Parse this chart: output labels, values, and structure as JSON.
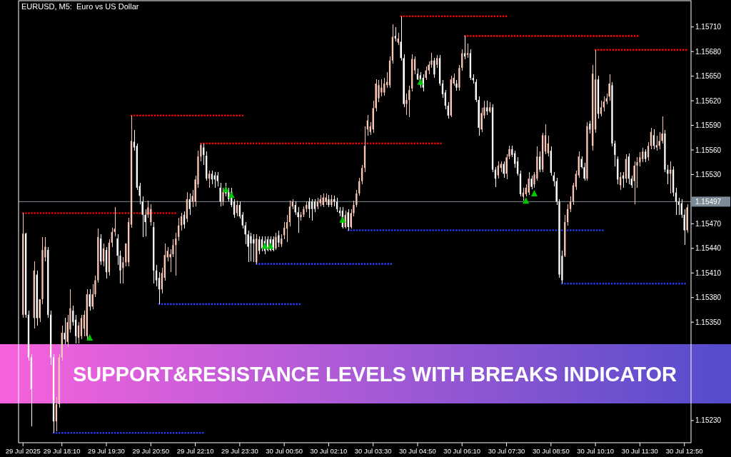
{
  "chart_data": {
    "type": "candlestick",
    "title": "EURUSD, M5:  Euro vs US Dollar",
    "annotations": [
      "SUPPORT&RESISTANCE LEVELS WITH BREAKS INDICATOR"
    ],
    "xlim": [
      "2025-07-29T16:52",
      "2025-07-30T13:02"
    ],
    "xticks": [
      {
        "value": "2025-07-29T17:00",
        "label": "29 Jul 2025"
      },
      {
        "value": "2025-07-29T18:10",
        "label": "29 Jul 18:10"
      },
      {
        "value": "2025-07-29T19:30",
        "label": "29 Jul 19:30"
      },
      {
        "value": "2025-07-29T20:50",
        "label": "29 Jul 20:50"
      },
      {
        "value": "2025-07-29T22:10",
        "label": "29 Jul 22:10"
      },
      {
        "value": "2025-07-29T23:30",
        "label": "29 Jul 23:30"
      },
      {
        "value": "2025-07-30T00:50",
        "label": "30 Jul 00:50"
      },
      {
        "value": "2025-07-30T02:10",
        "label": "30 Jul 02:10"
      },
      {
        "value": "2025-07-30T03:30",
        "label": "30 Jul 03:30"
      },
      {
        "value": "2025-07-30T04:50",
        "label": "30 Jul 04:50"
      },
      {
        "value": "2025-07-30T06:10",
        "label": "30 Jul 06:10"
      },
      {
        "value": "2025-07-30T07:30",
        "label": "30 Jul 07:30"
      },
      {
        "value": "2025-07-30T08:50",
        "label": "30 Jul 08:50"
      },
      {
        "value": "2025-07-30T10:10",
        "label": "30 Jul 10:10"
      },
      {
        "value": "2025-07-30T11:30",
        "label": "30 Jul 11:30"
      },
      {
        "value": "2025-07-30T12:50",
        "label": "30 Jul 12:50"
      }
    ],
    "ylim": [
      1.15203,
      1.15742
    ],
    "yticks": [
      {
        "value": 1.1523,
        "label": "1.15230"
      },
      {
        "value": 1.1535,
        "label": "1.15350"
      },
      {
        "value": 1.1538,
        "label": "1.15380"
      },
      {
        "value": 1.1541,
        "label": "1.15410"
      },
      {
        "value": 1.1544,
        "label": "1.15440"
      },
      {
        "value": 1.1547,
        "label": "1.15470"
      },
      {
        "value": 1.1553,
        "label": "1.15530"
      },
      {
        "value": 1.1556,
        "label": "1.15560"
      },
      {
        "value": 1.1559,
        "label": "1.15590"
      },
      {
        "value": 1.1562,
        "label": "1.15620"
      },
      {
        "value": 1.1565,
        "label": "1.15650"
      },
      {
        "value": 1.1568,
        "label": "1.15680"
      },
      {
        "value": 1.1571,
        "label": "1.15710"
      }
    ],
    "colors": [
      "#f9c6b3",
      "#ffffff",
      "#ffffff",
      "#ffffff",
      "#f9c6b3",
      "#ffffff",
      "#f9c6b3",
      "#f9c6b3",
      "#f9c6b3",
      "#ffffff",
      "#ffffff",
      "#ffffff",
      "#f9c6b3",
      "#f9c6b3",
      "#f9c6b3",
      "#ffffff",
      "#f9c6b3",
      "#f9c6b3",
      "#ffffff",
      "#ffffff",
      "#f9c6b3",
      "#f9c6b3",
      "#f9c6b3",
      "#f9c6b3",
      "#ffffff",
      "#f9c6b3",
      "#f9c6b3",
      "#f9c6b3",
      "#ffffff",
      "#f9c6b3",
      "#ffffff",
      "#f9c6b3",
      "#f9c6b3",
      "#f9c6b3",
      "#ffffff",
      "#ffffff",
      "#f9c6b3",
      "#f9c6b3",
      "#f9c6b3",
      "#f9c6b3",
      "#ffffff",
      "#ffffff",
      "#ffffff",
      "#ffffff",
      "#ffffff",
      "#f9c6b3",
      "#f9c6b3",
      "#ffffff",
      "#ffffff",
      "#ffffff",
      "#f9c6b3",
      "#f9c6b3",
      "#f9c6b3",
      "#f9c6b3",
      "#f9c6b3",
      "#f9c6b3",
      "#f9c6b3",
      "#f9c6b3",
      "#ffffff",
      "#f9c6b3",
      "#ffffff",
      "#f9c6b3",
      "#f9c6b3",
      "#f9c6b3",
      "#f9c6b3",
      "#ffffff",
      "#ffffff",
      "#f9c6b3",
      "#ffffff",
      "#ffffff",
      "#ffffff",
      "#ffffff",
      "#f9c6b3",
      "#ffffff",
      "#ffffff",
      "#ffffff",
      "#ffffff",
      "#f9c6b3",
      "#ffffff",
      "#ffffff",
      "#ffffff",
      "#ffffff",
      "#ffffff",
      "#ffffff",
      "#f9c6b3",
      "#ffffff",
      "#ffffff",
      "#ffffff",
      "#ffffff",
      "#ffffff",
      "#ffffff",
      "#f9c6b3",
      "#ffffff",
      "#f9c6b3",
      "#f9c6b3",
      "#f9c6b3",
      "#f9c6b3",
      "#f9c6b3",
      "#ffffff",
      "#ffffff",
      "#f9c6b3",
      "#f9c6b3",
      "#f9c6b3",
      "#ffffff",
      "#ffffff",
      "#ffffff",
      "#f9c6b3",
      "#f9c6b3",
      "#f9c6b3",
      "#f9c6b3",
      "#ffffff",
      "#f9c6b3",
      "#ffffff",
      "#ffffff",
      "#ffffff",
      "#ffffff",
      "#f9c6b3",
      "#ffffff",
      "#f9c6b3",
      "#f9c6b3",
      "#f9c6b3",
      "#f9c6b3",
      "#f9c6b3",
      "#f9c6b3",
      "#f9c6b3",
      "#f9c6b3",
      "#f9c6b3",
      "#f9c6b3",
      "#f9c6b3",
      "#f9c6b3",
      "#f9c6b3",
      "#f9c6b3",
      "#f9c6b3",
      "#f9c6b3",
      "#ffffff",
      "#f9c6b3",
      "#ffffff",
      "#ffffff",
      "#f9c6b3",
      "#f9c6b3",
      "#f9c6b3",
      "#f9c6b3",
      "#ffffff",
      "#ffffff",
      "#ffffff",
      "#f9c6b3",
      "#f9c6b3",
      "#f9c6b3",
      "#ffffff",
      "#f9c6b3",
      "#ffffff",
      "#ffffff",
      "#ffffff",
      "#ffffff",
      "#f9c6b3",
      "#f9c6b3",
      "#ffffff",
      "#f9c6b3",
      "#f9c6b3",
      "#ffffff",
      "#f9c6b3",
      "#ffffff",
      "#ffffff",
      "#ffffff",
      "#ffffff",
      "#f9c6b3",
      "#f9c6b3",
      "#ffffff",
      "#f9c6b3",
      "#ffffff",
      "#ffffff",
      "#f9c6b3",
      "#f9c6b3",
      "#ffffff",
      "#f9c6b3",
      "#f9c6b3",
      "#ffffff",
      "#ffffff",
      "#ffffff",
      "#ffffff",
      "#f9c6b3",
      "#f9c6b3",
      "#f9c6b3",
      "#ffffff",
      "#f9c6b3",
      "#f9c6b3",
      "#ffffff",
      "#f9c6b3",
      "#f9c6b3",
      "#f9c6b3",
      "#ffffff",
      "#ffffff",
      "#ffffff",
      "#ffffff",
      "#ffffff",
      "#f9c6b3",
      "#f9c6b3",
      "#f9c6b3",
      "#f9c6b3",
      "#f9c6b3",
      "#f9c6b3",
      "#ffffff",
      "#ffffff",
      "#f9c6b3",
      "#ffffff",
      "#f9c6b3",
      "#f9c6b3",
      "#ffffff",
      "#f9c6b3",
      "#f9c6b3",
      "#f9c6b3",
      "#f9c6b3",
      "#ffffff",
      "#ffffff",
      "#ffffff",
      "#f9c6b3",
      "#ffffff",
      "#f9c6b3",
      "#ffffff",
      "#ffffff",
      "#f9c6b3",
      "#f9c6b3",
      "#f9c6b3",
      "#f9c6b3",
      "#ffffff",
      "#f9c6b3",
      "#f9c6b3",
      "#ffffff",
      "#f9c6b3",
      "#f9c6b3",
      "#f9c6b3",
      "#ffffff",
      "#ffffff",
      "#f9c6b3",
      "#ffffff",
      "#ffffff",
      "#ffffff",
      "#ffffff",
      "#ffffff",
      "#f9c6b3"
    ],
    "ref_lines": [
      {
        "axis": "y",
        "value": 1.15497,
        "label": "1.15497",
        "color": "#7d8b98"
      }
    ],
    "x": [
      "2025-07-29T17:00",
      "2025-07-29T17:05",
      "2025-07-29T17:10",
      "2025-07-29T17:15",
      "2025-07-29T17:20",
      "2025-07-29T17:25",
      "2025-07-29T17:30",
      "2025-07-29T17:35",
      "2025-07-29T17:40",
      "2025-07-29T17:45",
      "2025-07-29T17:50",
      "2025-07-29T17:55",
      "2025-07-29T18:00",
      "2025-07-29T18:05",
      "2025-07-29T18:10",
      "2025-07-29T18:15",
      "2025-07-29T18:20",
      "2025-07-29T18:25",
      "2025-07-29T18:30",
      "2025-07-29T18:35",
      "2025-07-29T18:40",
      "2025-07-29T18:45",
      "2025-07-29T18:50",
      "2025-07-29T18:55",
      "2025-07-29T19:00",
      "2025-07-29T19:05",
      "2025-07-29T19:10",
      "2025-07-29T19:15",
      "2025-07-29T19:20",
      "2025-07-29T19:25",
      "2025-07-29T19:30",
      "2025-07-29T19:35",
      "2025-07-29T19:40",
      "2025-07-29T19:45",
      "2025-07-29T19:50",
      "2025-07-29T19:55",
      "2025-07-29T20:00",
      "2025-07-29T20:05",
      "2025-07-29T20:10",
      "2025-07-29T20:15",
      "2025-07-29T20:20",
      "2025-07-29T20:25",
      "2025-07-29T20:30",
      "2025-07-29T20:35",
      "2025-07-29T20:40",
      "2025-07-29T20:45",
      "2025-07-29T20:50",
      "2025-07-29T20:55",
      "2025-07-29T21:00",
      "2025-07-29T21:05",
      "2025-07-29T21:10",
      "2025-07-29T21:15",
      "2025-07-29T21:20",
      "2025-07-29T21:25",
      "2025-07-29T21:30",
      "2025-07-29T21:35",
      "2025-07-29T21:40",
      "2025-07-29T21:45",
      "2025-07-29T21:50",
      "2025-07-29T21:55",
      "2025-07-29T22:00",
      "2025-07-29T22:05",
      "2025-07-29T22:10",
      "2025-07-29T22:15",
      "2025-07-29T22:20",
      "2025-07-29T22:25",
      "2025-07-29T22:30",
      "2025-07-29T22:35",
      "2025-07-29T22:40",
      "2025-07-29T22:45",
      "2025-07-29T22:50",
      "2025-07-29T22:55",
      "2025-07-29T23:00",
      "2025-07-29T23:05",
      "2025-07-29T23:10",
      "2025-07-29T23:15",
      "2025-07-29T23:20",
      "2025-07-29T23:25",
      "2025-07-29T23:30",
      "2025-07-29T23:35",
      "2025-07-29T23:40",
      "2025-07-29T23:45",
      "2025-07-29T23:50",
      "2025-07-29T23:55",
      "2025-07-30T00:00",
      "2025-07-30T00:05",
      "2025-07-30T00:10",
      "2025-07-30T00:15",
      "2025-07-30T00:20",
      "2025-07-30T00:25",
      "2025-07-30T00:30",
      "2025-07-30T00:35",
      "2025-07-30T00:40",
      "2025-07-30T00:45",
      "2025-07-30T00:50",
      "2025-07-30T00:55",
      "2025-07-30T01:00",
      "2025-07-30T01:05",
      "2025-07-30T01:10",
      "2025-07-30T01:15",
      "2025-07-30T01:20",
      "2025-07-30T01:25",
      "2025-07-30T01:30",
      "2025-07-30T01:35",
      "2025-07-30T01:40",
      "2025-07-30T01:45",
      "2025-07-30T01:50",
      "2025-07-30T01:55",
      "2025-07-30T02:00",
      "2025-07-30T02:05",
      "2025-07-30T02:10",
      "2025-07-30T02:15",
      "2025-07-30T02:20",
      "2025-07-30T02:25",
      "2025-07-30T02:30",
      "2025-07-30T02:35",
      "2025-07-30T02:40",
      "2025-07-30T02:45",
      "2025-07-30T02:50",
      "2025-07-30T02:55",
      "2025-07-30T03:00",
      "2025-07-30T03:05",
      "2025-07-30T03:10",
      "2025-07-30T03:15",
      "2025-07-30T03:20",
      "2025-07-30T03:25",
      "2025-07-30T03:30",
      "2025-07-30T03:35",
      "2025-07-30T03:40",
      "2025-07-30T03:45",
      "2025-07-30T03:50",
      "2025-07-30T03:55",
      "2025-07-30T04:00",
      "2025-07-30T04:05",
      "2025-07-30T04:10",
      "2025-07-30T04:15",
      "2025-07-30T04:20",
      "2025-07-30T04:25",
      "2025-07-30T04:30",
      "2025-07-30T04:35",
      "2025-07-30T04:40",
      "2025-07-30T04:45",
      "2025-07-30T04:50",
      "2025-07-30T04:55",
      "2025-07-30T05:00",
      "2025-07-30T05:05",
      "2025-07-30T05:10",
      "2025-07-30T05:15",
      "2025-07-30T05:20",
      "2025-07-30T05:25",
      "2025-07-30T05:30",
      "2025-07-30T05:35",
      "2025-07-30T05:40",
      "2025-07-30T05:45",
      "2025-07-30T05:50",
      "2025-07-30T05:55",
      "2025-07-30T06:00",
      "2025-07-30T06:05",
      "2025-07-30T06:10",
      "2025-07-30T06:15",
      "2025-07-30T06:20",
      "2025-07-30T06:25",
      "2025-07-30T06:30",
      "2025-07-30T06:35",
      "2025-07-30T06:40",
      "2025-07-30T06:45",
      "2025-07-30T06:50",
      "2025-07-30T06:55",
      "2025-07-30T07:00",
      "2025-07-30T07:05",
      "2025-07-30T07:10",
      "2025-07-30T07:15",
      "2025-07-30T07:20",
      "2025-07-30T07:25",
      "2025-07-30T07:30",
      "2025-07-30T07:35",
      "2025-07-30T07:40",
      "2025-07-30T07:45",
      "2025-07-30T07:50",
      "2025-07-30T07:55",
      "2025-07-30T08:00",
      "2025-07-30T08:05",
      "2025-07-30T08:10",
      "2025-07-30T08:15",
      "2025-07-30T08:20",
      "2025-07-30T08:25",
      "2025-07-30T08:30",
      "2025-07-30T08:35",
      "2025-07-30T08:40",
      "2025-07-30T08:45",
      "2025-07-30T08:50",
      "2025-07-30T08:55",
      "2025-07-30T09:00",
      "2025-07-30T09:05",
      "2025-07-30T09:10",
      "2025-07-30T09:15",
      "2025-07-30T09:20",
      "2025-07-30T09:25",
      "2025-07-30T09:30",
      "2025-07-30T09:35",
      "2025-07-30T09:40",
      "2025-07-30T09:45",
      "2025-07-30T09:50",
      "2025-07-30T09:55",
      "2025-07-30T10:00",
      "2025-07-30T10:05",
      "2025-07-30T10:10",
      "2025-07-30T10:15",
      "2025-07-30T10:20",
      "2025-07-30T10:25",
      "2025-07-30T10:30",
      "2025-07-30T10:35",
      "2025-07-30T10:40",
      "2025-07-30T10:45",
      "2025-07-30T10:50",
      "2025-07-30T10:55",
      "2025-07-30T11:00",
      "2025-07-30T11:05",
      "2025-07-30T11:10",
      "2025-07-30T11:15",
      "2025-07-30T11:20",
      "2025-07-30T11:25",
      "2025-07-30T11:30",
      "2025-07-30T11:35",
      "2025-07-30T11:40",
      "2025-07-30T11:45",
      "2025-07-30T11:50",
      "2025-07-30T11:55",
      "2025-07-30T12:00",
      "2025-07-30T12:05",
      "2025-07-30T12:10",
      "2025-07-30T12:15",
      "2025-07-30T12:20",
      "2025-07-30T12:25",
      "2025-07-30T12:30",
      "2025-07-30T12:35",
      "2025-07-30T12:40",
      "2025-07-30T12:45",
      "2025-07-30T12:50",
      "2025-07-30T12:55"
    ],
    "ohlc": [
      [
        1.15359,
        1.15483,
        1.15355,
        1.15458
      ],
      [
        1.15458,
        1.15459,
        1.15355,
        1.15359
      ],
      [
        1.15359,
        1.15364,
        1.15303,
        1.15307
      ],
      [
        1.15307,
        1.15311,
        1.15223,
        1.15268
      ],
      [
        1.15355,
        1.15424,
        1.15342,
        1.15413
      ],
      [
        1.15408,
        1.15413,
        1.15346,
        1.15355
      ],
      [
        1.15355,
        1.15378,
        1.1535,
        1.15378
      ],
      [
        1.15378,
        1.15454,
        1.15372,
        1.15438
      ],
      [
        1.15429,
        1.15454,
        1.15424,
        1.15442
      ],
      [
        1.15438,
        1.15442,
        1.15355,
        1.15359
      ],
      [
        1.15359,
        1.15364,
        1.15298,
        1.15307
      ],
      [
        1.15307,
        1.15311,
        1.15215,
        1.15229
      ],
      [
        1.15229,
        1.15259,
        1.15217,
        1.1525
      ],
      [
        1.1525,
        1.15311,
        1.15246,
        1.15307
      ],
      [
        1.15307,
        1.15346,
        1.15303,
        1.15337
      ],
      [
        1.15337,
        1.15355,
        1.15323,
        1.15329
      ],
      [
        1.15326,
        1.15359,
        1.1532,
        1.1535
      ],
      [
        1.15341,
        1.1539,
        1.15337,
        1.15367
      ],
      [
        1.15364,
        1.1537,
        1.15346,
        1.1535
      ],
      [
        1.15353,
        1.15359,
        1.15324,
        1.15333
      ],
      [
        1.15331,
        1.1535,
        1.15324,
        1.15346
      ],
      [
        1.15333,
        1.15359,
        1.15329,
        1.15355
      ],
      [
        1.15342,
        1.15364,
        1.15333,
        1.15359
      ],
      [
        1.15333,
        1.1539,
        1.15329,
        1.15384
      ],
      [
        1.15384,
        1.1539,
        1.15364,
        1.15369
      ],
      [
        1.15369,
        1.15396,
        1.15366,
        1.15384
      ],
      [
        1.15384,
        1.15407,
        1.15381,
        1.15401
      ],
      [
        1.15401,
        1.15464,
        1.15398,
        1.15454
      ],
      [
        1.15452,
        1.15457,
        1.1542,
        1.15424
      ],
      [
        1.15424,
        1.15446,
        1.15418,
        1.1544
      ],
      [
        1.15438,
        1.15442,
        1.15403,
        1.15411
      ],
      [
        1.15411,
        1.15451,
        1.15407,
        1.15447
      ],
      [
        1.15447,
        1.15465,
        1.15442,
        1.1546
      ],
      [
        1.1546,
        1.1549,
        1.15455,
        1.15464
      ],
      [
        1.15452,
        1.15457,
        1.1542,
        1.15431
      ],
      [
        1.15431,
        1.15437,
        1.15397,
        1.15413
      ],
      [
        1.15416,
        1.15429,
        1.15397,
        1.15423
      ],
      [
        1.15423,
        1.15446,
        1.15418,
        1.15446
      ],
      [
        1.15423,
        1.15477,
        1.15418,
        1.15472
      ],
      [
        1.15469,
        1.15602,
        1.15465,
        1.15571
      ],
      [
        1.1557,
        1.15584,
        1.15559,
        1.15563
      ],
      [
        1.15565,
        1.15568,
        1.15511,
        1.15514
      ],
      [
        1.15516,
        1.1552,
        1.15494,
        1.15504
      ],
      [
        1.15497,
        1.15503,
        1.15454,
        1.15481
      ],
      [
        1.15481,
        1.15488,
        1.15455,
        1.15472
      ],
      [
        1.15481,
        1.15498,
        1.15477,
        1.1549
      ],
      [
        1.15472,
        1.15494,
        1.15468,
        1.15488
      ],
      [
        1.15466,
        1.15472,
        1.15397,
        1.15413
      ],
      [
        1.15413,
        1.1542,
        1.15394,
        1.15401
      ],
      [
        1.15404,
        1.15411,
        1.15372,
        1.1539
      ],
      [
        1.1539,
        1.15416,
        1.15385,
        1.1541
      ],
      [
        1.15404,
        1.15446,
        1.15401,
        1.15432
      ],
      [
        1.15429,
        1.15442,
        1.15424,
        1.15437
      ],
      [
        1.15429,
        1.15439,
        1.15411,
        1.15433
      ],
      [
        1.15433,
        1.15451,
        1.15429,
        1.15444
      ],
      [
        1.15444,
        1.15459,
        1.15407,
        1.15452
      ],
      [
        1.15454,
        1.15477,
        1.15449,
        1.15468
      ],
      [
        1.15468,
        1.15483,
        1.15462,
        1.15479
      ],
      [
        1.15481,
        1.15485,
        1.15464,
        1.15469
      ],
      [
        1.15476,
        1.15509,
        1.15472,
        1.155
      ],
      [
        1.155,
        1.15507,
        1.15481,
        1.15488
      ],
      [
        1.15497,
        1.15511,
        1.1549,
        1.15504
      ],
      [
        1.15497,
        1.15529,
        1.15491,
        1.15524
      ],
      [
        1.15518,
        1.15559,
        1.15514,
        1.15552
      ],
      [
        1.15552,
        1.15568,
        1.15546,
        1.15566
      ],
      [
        1.15563,
        1.15568,
        1.15542,
        1.15554
      ],
      [
        1.15553,
        1.15558,
        1.15523,
        1.15525
      ],
      [
        1.15525,
        1.15535,
        1.15514,
        1.15531
      ],
      [
        1.15531,
        1.15535,
        1.15518,
        1.15524
      ],
      [
        1.15529,
        1.15533,
        1.15514,
        1.15524
      ],
      [
        1.15529,
        1.15533,
        1.15516,
        1.15522
      ],
      [
        1.15514,
        1.1552,
        1.15491,
        1.15497
      ],
      [
        1.15497,
        1.15514,
        1.15492,
        1.15509
      ],
      [
        1.15514,
        1.1552,
        1.15503,
        1.15507
      ],
      [
        1.15509,
        1.15514,
        1.15497,
        1.155
      ],
      [
        1.15509,
        1.15514,
        1.1549,
        1.15493
      ],
      [
        1.15497,
        1.155,
        1.15477,
        1.15481
      ],
      [
        1.15483,
        1.15498,
        1.15479,
        1.15493
      ],
      [
        1.15493,
        1.15497,
        1.15476,
        1.15479
      ],
      [
        1.15481,
        1.15484,
        1.15464,
        1.15468
      ],
      [
        1.15468,
        1.15472,
        1.15445,
        1.15457
      ],
      [
        1.15457,
        1.15462,
        1.15423,
        1.15442
      ],
      [
        1.15455,
        1.15459,
        1.15424,
        1.15446
      ],
      [
        1.15451,
        1.15457,
        1.15423,
        1.15446
      ],
      [
        1.15423,
        1.15457,
        1.15421,
        1.15452
      ],
      [
        1.15451,
        1.15455,
        1.15433,
        1.15437
      ],
      [
        1.15451,
        1.15455,
        1.15436,
        1.1544
      ],
      [
        1.15449,
        1.15455,
        1.15433,
        1.15437
      ],
      [
        1.15451,
        1.15455,
        1.15436,
        1.15438
      ],
      [
        1.15451,
        1.15455,
        1.15436,
        1.15438
      ],
      [
        1.15451,
        1.15455,
        1.15436,
        1.15438
      ],
      [
        1.1544,
        1.15459,
        1.15438,
        1.15454
      ],
      [
        1.15456,
        1.15462,
        1.15442,
        1.15447
      ],
      [
        1.15445,
        1.15457,
        1.15442,
        1.15452
      ],
      [
        1.15456,
        1.15472,
        1.15451,
        1.15465
      ],
      [
        1.15464,
        1.15481,
        1.15448,
        1.15472
      ],
      [
        1.15472,
        1.15498,
        1.15467,
        1.15491
      ],
      [
        1.15491,
        1.155,
        1.15488,
        1.15497
      ],
      [
        1.15493,
        1.15497,
        1.15481,
        1.15484
      ],
      [
        1.15484,
        1.1549,
        1.15459,
        1.15478
      ],
      [
        1.15478,
        1.15484,
        1.15474,
        1.15481
      ],
      [
        1.15481,
        1.15491,
        1.15478,
        1.15488
      ],
      [
        1.15488,
        1.15497,
        1.15484,
        1.15493
      ],
      [
        1.15497,
        1.15502,
        1.15477,
        1.15488
      ],
      [
        1.15497,
        1.155,
        1.15474,
        1.15488
      ],
      [
        1.15497,
        1.155,
        1.15484,
        1.15488
      ],
      [
        1.15491,
        1.15502,
        1.15488,
        1.15497
      ],
      [
        1.15495,
        1.15505,
        1.15491,
        1.155
      ],
      [
        1.15493,
        1.15507,
        1.1549,
        1.15502
      ],
      [
        1.15497,
        1.15507,
        1.15493,
        1.15502
      ],
      [
        1.155,
        1.15505,
        1.1549,
        1.15493
      ],
      [
        1.15493,
        1.15505,
        1.1549,
        1.155
      ],
      [
        1.155,
        1.15504,
        1.15491,
        1.15497
      ],
      [
        1.15497,
        1.15502,
        1.15484,
        1.15488
      ],
      [
        1.15486,
        1.1549,
        1.15479,
        1.15483
      ],
      [
        1.15486,
        1.1549,
        1.15464,
        1.15466
      ],
      [
        1.15466,
        1.15486,
        1.15464,
        1.15481
      ],
      [
        1.15484,
        1.15488,
        1.15462,
        1.15466
      ],
      [
        1.15466,
        1.15488,
        1.15464,
        1.15483
      ],
      [
        1.15483,
        1.15498,
        1.15479,
        1.15493
      ],
      [
        1.15493,
        1.15511,
        1.1549,
        1.15507
      ],
      [
        1.15507,
        1.15526,
        1.15504,
        1.15522
      ],
      [
        1.15522,
        1.15542,
        1.15518,
        1.15538
      ],
      [
        1.15538,
        1.15589,
        1.15533,
        1.15565
      ],
      [
        1.15585,
        1.15603,
        1.15577,
        1.15596
      ],
      [
        1.15582,
        1.15594,
        1.15578,
        1.15589
      ],
      [
        1.15585,
        1.1562,
        1.15581,
        1.15611
      ],
      [
        1.15611,
        1.15646,
        1.15607,
        1.15641
      ],
      [
        1.15623,
        1.15645,
        1.15618,
        1.15639
      ],
      [
        1.1563,
        1.15646,
        1.15625,
        1.15636
      ],
      [
        1.1563,
        1.15648,
        1.15626,
        1.15641
      ],
      [
        1.15639,
        1.15655,
        1.15636,
        1.15643
      ],
      [
        1.15639,
        1.15674,
        1.15636,
        1.15669
      ],
      [
        1.15669,
        1.15713,
        1.15665,
        1.15698
      ],
      [
        1.15699,
        1.1571,
        1.15692,
        1.15696
      ],
      [
        1.15691,
        1.15703,
        1.15688,
        1.15696
      ],
      [
        1.15692,
        1.15723,
        1.15669,
        1.15672
      ],
      [
        1.15672,
        1.15677,
        1.15612,
        1.15616
      ],
      [
        1.15616,
        1.15629,
        1.15603,
        1.15621
      ],
      [
        1.15621,
        1.15638,
        1.156,
        1.15633
      ],
      [
        1.15635,
        1.15677,
        1.15631,
        1.15671
      ],
      [
        1.15657,
        1.15674,
        1.15652,
        1.15671
      ],
      [
        1.15653,
        1.15659,
        1.15645,
        1.15646
      ],
      [
        1.15651,
        1.15655,
        1.15636,
        1.15639
      ],
      [
        1.15648,
        1.15652,
        1.15631,
        1.15636
      ],
      [
        1.15648,
        1.15662,
        1.15645,
        1.15657
      ],
      [
        1.15657,
        1.15668,
        1.15652,
        1.15664
      ],
      [
        1.15664,
        1.15678,
        1.1566,
        1.15669
      ],
      [
        1.15669,
        1.15672,
        1.15648,
        1.15652
      ],
      [
        1.15664,
        1.15676,
        1.1566,
        1.15672
      ],
      [
        1.15672,
        1.15676,
        1.15638,
        1.15641
      ],
      [
        1.15641,
        1.15645,
        1.15624,
        1.15628
      ],
      [
        1.1563,
        1.15633,
        1.1561,
        1.15614
      ],
      [
        1.15614,
        1.15618,
        1.15598,
        1.15602
      ],
      [
        1.15602,
        1.15651,
        1.156,
        1.15646
      ],
      [
        1.15641,
        1.15653,
        1.15638,
        1.15648
      ],
      [
        1.15641,
        1.15645,
        1.15632,
        1.15636
      ],
      [
        1.15636,
        1.15664,
        1.15632,
        1.1566
      ],
      [
        1.1566,
        1.15683,
        1.15657,
        1.15678
      ],
      [
        1.15678,
        1.15699,
        1.15671,
        1.15674
      ],
      [
        1.15676,
        1.1569,
        1.15672,
        1.15678
      ],
      [
        1.15678,
        1.15683,
        1.15645,
        1.15648
      ],
      [
        1.15648,
        1.15652,
        1.15641,
        1.15645
      ],
      [
        1.15643,
        1.15646,
        1.15618,
        1.15621
      ],
      [
        1.15621,
        1.15625,
        1.15577,
        1.15587
      ],
      [
        1.15585,
        1.15611,
        1.15582,
        1.15605
      ],
      [
        1.15602,
        1.1562,
        1.15598,
        1.15612
      ],
      [
        1.15612,
        1.1562,
        1.15603,
        1.15607
      ],
      [
        1.15607,
        1.15618,
        1.15605,
        1.15612
      ],
      [
        1.15612,
        1.15616,
        1.15533,
        1.15536
      ],
      [
        1.15536,
        1.15539,
        1.15515,
        1.15525
      ],
      [
        1.15529,
        1.15546,
        1.15525,
        1.15541
      ],
      [
        1.15538,
        1.15546,
        1.15533,
        1.15543
      ],
      [
        1.15543,
        1.15546,
        1.15526,
        1.15531
      ],
      [
        1.15531,
        1.15555,
        1.15524,
        1.15551
      ],
      [
        1.15552,
        1.15565,
        1.15549,
        1.15561
      ],
      [
        1.15561,
        1.15565,
        1.15551,
        1.15554
      ],
      [
        1.15556,
        1.15559,
        1.15538,
        1.15543
      ],
      [
        1.15546,
        1.15551,
        1.15529,
        1.15531
      ],
      [
        1.15531,
        1.15535,
        1.15503,
        1.15506
      ],
      [
        1.15503,
        1.15514,
        1.15498,
        1.15508
      ],
      [
        1.15506,
        1.15518,
        1.15503,
        1.15514
      ],
      [
        1.15508,
        1.15533,
        1.15505,
        1.15525
      ],
      [
        1.15525,
        1.15529,
        1.15512,
        1.15515
      ],
      [
        1.15518,
        1.15533,
        1.15514,
        1.1553
      ],
      [
        1.15525,
        1.15564,
        1.15523,
        1.15552
      ],
      [
        1.15552,
        1.15558,
        1.15533,
        1.15536
      ],
      [
        1.15536,
        1.15581,
        1.15533,
        1.15578
      ],
      [
        1.15558,
        1.15591,
        1.15555,
        1.15578
      ],
      [
        1.15556,
        1.15577,
        1.15552,
        1.15568
      ],
      [
        1.15559,
        1.15564,
        1.15529,
        1.15532
      ],
      [
        1.15529,
        1.15533,
        1.15516,
        1.15522
      ],
      [
        1.15522,
        1.15526,
        1.15493,
        1.15497
      ],
      [
        1.15497,
        1.155,
        1.15404,
        1.15408
      ],
      [
        1.15431,
        1.15437,
        1.15397,
        1.15401
      ],
      [
        1.15431,
        1.15481,
        1.15429,
        1.15472
      ],
      [
        1.15472,
        1.15494,
        1.15468,
        1.15488
      ],
      [
        1.15488,
        1.15503,
        1.15484,
        1.15497
      ],
      [
        1.15497,
        1.1552,
        1.15493,
        1.15517
      ],
      [
        1.15515,
        1.15535,
        1.15511,
        1.15531
      ],
      [
        1.15529,
        1.15558,
        1.15526,
        1.15552
      ],
      [
        1.15549,
        1.15552,
        1.15537,
        1.15539
      ],
      [
        1.15539,
        1.15544,
        1.15523,
        1.15525
      ],
      [
        1.15525,
        1.15594,
        1.15523,
        1.15589
      ],
      [
        1.15592,
        1.15596,
        1.1558,
        1.15585
      ],
      [
        1.15565,
        1.15664,
        1.15559,
        1.15653
      ],
      [
        1.15585,
        1.15682,
        1.15581,
        1.15646
      ],
      [
        1.15646,
        1.15651,
        1.15598,
        1.15604
      ],
      [
        1.15604,
        1.1562,
        1.15601,
        1.15612
      ],
      [
        1.15612,
        1.15625,
        1.15607,
        1.15619
      ],
      [
        1.15619,
        1.15629,
        1.15616,
        1.15623
      ],
      [
        1.15625,
        1.15652,
        1.1562,
        1.15641
      ],
      [
        1.15639,
        1.15643,
        1.15564,
        1.15568
      ],
      [
        1.15568,
        1.15571,
        1.1554,
        1.15554
      ],
      [
        1.15549,
        1.15552,
        1.15518,
        1.15524
      ],
      [
        1.15517,
        1.15533,
        1.15511,
        1.15527
      ],
      [
        1.15529,
        1.15533,
        1.15514,
        1.15525
      ],
      [
        1.15525,
        1.15555,
        1.1552,
        1.15549
      ],
      [
        1.15552,
        1.15556,
        1.15518,
        1.15525
      ],
      [
        1.15525,
        1.15529,
        1.15514,
        1.15517
      ],
      [
        1.15522,
        1.15546,
        1.15494,
        1.15541
      ],
      [
        1.15541,
        1.15551,
        1.15514,
        1.15545
      ],
      [
        1.15545,
        1.15557,
        1.1554,
        1.15551
      ],
      [
        1.15549,
        1.15563,
        1.15545,
        1.15558
      ],
      [
        1.15558,
        1.15561,
        1.15545,
        1.15549
      ],
      [
        1.15551,
        1.1557,
        1.15547,
        1.15565
      ],
      [
        1.15565,
        1.15587,
        1.15561,
        1.15582
      ],
      [
        1.15578,
        1.15585,
        1.15561,
        1.15565
      ],
      [
        1.15563,
        1.15577,
        1.15559,
        1.15566
      ],
      [
        1.15565,
        1.15582,
        1.15561,
        1.15571
      ],
      [
        1.15571,
        1.15601,
        1.15568,
        1.1558
      ],
      [
        1.1558,
        1.15584,
        1.15533,
        1.15536
      ],
      [
        1.15536,
        1.15542,
        1.15518,
        1.15531
      ],
      [
        1.15531,
        1.15546,
        1.15507,
        1.15536
      ],
      [
        1.15536,
        1.1554,
        1.15503,
        1.15508
      ],
      [
        1.15508,
        1.15514,
        1.15481,
        1.15497
      ],
      [
        1.15497,
        1.15502,
        1.15481,
        1.15493
      ],
      [
        1.15495,
        1.155,
        1.15477,
        1.15481
      ],
      [
        1.15481,
        1.15488,
        1.15444,
        1.15462
      ],
      [
        1.15462,
        1.15494,
        1.15459,
        1.1549
      ]
    ],
    "series": [
      {
        "type": "line",
        "x": [
          "2025-07-29T17:00",
          "2025-07-29T21:35"
        ],
        "values": [
          1.15483,
          1.15483
        ],
        "color": "#ff0000",
        "line_style": "dotted",
        "marker": "none"
      },
      {
        "type": "line",
        "x": [
          "2025-07-29T20:15",
          "2025-07-29T23:40"
        ],
        "values": [
          1.15602,
          1.15602
        ],
        "color": "#ff0000",
        "line_style": "dotted",
        "marker": "none"
      },
      {
        "type": "line",
        "x": [
          "2025-07-29T22:20",
          "2025-07-30T05:35"
        ],
        "values": [
          1.15568,
          1.15568
        ],
        "color": "#ff0000",
        "line_style": "dotted",
        "marker": "none"
      },
      {
        "type": "line",
        "x": [
          "2025-07-30T04:20",
          "2025-07-30T07:30"
        ],
        "values": [
          1.15723,
          1.15723
        ],
        "color": "#ff0000",
        "line_style": "dotted",
        "marker": "none"
      },
      {
        "type": "line",
        "x": [
          "2025-07-30T06:15",
          "2025-07-30T11:30"
        ],
        "values": [
          1.15699,
          1.15699
        ],
        "color": "#ff0000",
        "line_style": "dotted",
        "marker": "none"
      },
      {
        "type": "line",
        "x": [
          "2025-07-30T10:10",
          "2025-07-30T12:55"
        ],
        "values": [
          1.15682,
          1.15682
        ],
        "color": "#ff0000",
        "line_style": "dotted",
        "marker": "none"
      },
      {
        "type": "line",
        "x": [
          "2025-07-29T17:55",
          "2025-07-29T22:25"
        ],
        "values": [
          1.15215,
          1.15215
        ],
        "color": "#2b3cff",
        "line_style": "dotted",
        "marker": "none"
      },
      {
        "type": "line",
        "x": [
          "2025-07-29T21:05",
          "2025-07-30T01:20"
        ],
        "values": [
          1.15372,
          1.15372
        ],
        "color": "#2b3cff",
        "line_style": "dotted",
        "marker": "none"
      },
      {
        "type": "line",
        "x": [
          "2025-07-30T00:00",
          "2025-07-30T04:05"
        ],
        "values": [
          1.15421,
          1.15421
        ],
        "color": "#2b3cff",
        "line_style": "dotted",
        "marker": "none"
      },
      {
        "type": "line",
        "x": [
          "2025-07-30T02:45",
          "2025-07-30T10:25"
        ],
        "values": [
          1.15462,
          1.15462
        ],
        "color": "#2b3cff",
        "line_style": "dotted",
        "marker": "none"
      },
      {
        "type": "line",
        "x": [
          "2025-07-30T09:10",
          "2025-07-30T12:55"
        ],
        "values": [
          1.15397,
          1.15397
        ],
        "color": "#2b3cff",
        "line_style": "dotted",
        "marker": "none"
      },
      {
        "type": "scatter",
        "x": [
          "2025-07-29T19:00",
          "2025-07-29T23:05",
          "2025-07-29T23:15",
          "2025-07-30T00:15",
          "2025-07-30T00:25",
          "2025-07-30T02:35",
          "2025-07-30T04:55",
          "2025-07-30T08:05",
          "2025-07-30T08:20"
        ],
        "values": [
          1.15331,
          1.15512,
          1.15505,
          1.15443,
          1.15443,
          1.15475,
          1.15643,
          1.15498,
          1.15507
        ],
        "color": "#00c800",
        "marker": "triangle"
      }
    ]
  }
}
